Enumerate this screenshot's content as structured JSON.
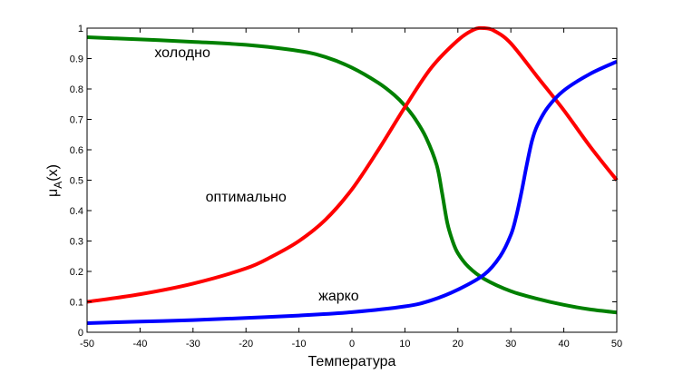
{
  "chart_data": {
    "type": "line",
    "xlabel": "Температура",
    "ylabel_main": "μ",
    "ylabel_sub": "A",
    "ylabel_rest": "(x)",
    "xlim": [
      -50,
      50
    ],
    "ylim": [
      0,
      1
    ],
    "xticks": [
      -50,
      -40,
      -30,
      -20,
      -10,
      0,
      10,
      20,
      30,
      40,
      50
    ],
    "yticks": [
      0,
      0.1,
      0.2,
      0.3,
      0.4,
      0.5,
      0.6,
      0.7,
      0.8,
      0.9,
      1
    ],
    "grid": false,
    "series": [
      {
        "name": "холодно",
        "color": "#008000",
        "x": [
          -50,
          -40,
          -30,
          -20,
          -10,
          -5,
          0,
          5,
          8,
          10,
          12,
          14,
          16,
          17,
          18,
          19,
          20,
          22,
          25,
          30,
          35,
          40,
          45,
          50
        ],
        "y": [
          0.97,
          0.963,
          0.955,
          0.945,
          0.925,
          0.905,
          0.87,
          0.82,
          0.78,
          0.745,
          0.7,
          0.64,
          0.55,
          0.46,
          0.36,
          0.3,
          0.26,
          0.215,
          0.175,
          0.135,
          0.11,
          0.09,
          0.075,
          0.065
        ]
      },
      {
        "name": "оптимально",
        "color": "#ff0000",
        "x": [
          -50,
          -40,
          -30,
          -20,
          -15,
          -10,
          -5,
          0,
          5,
          10,
          15,
          20,
          23,
          25,
          27,
          30,
          35,
          40,
          45,
          50
        ],
        "y": [
          0.1,
          0.125,
          0.16,
          0.21,
          0.25,
          0.3,
          0.37,
          0.47,
          0.6,
          0.74,
          0.87,
          0.96,
          0.995,
          1.0,
          0.99,
          0.95,
          0.84,
          0.73,
          0.61,
          0.5
        ]
      },
      {
        "name": "жарко",
        "color": "#0000ff",
        "x": [
          -50,
          -40,
          -30,
          -20,
          -10,
          0,
          10,
          15,
          20,
          25,
          28,
          30,
          31,
          32,
          33,
          34,
          35,
          37,
          40,
          45,
          50
        ],
        "y": [
          0.03,
          0.035,
          0.04,
          0.047,
          0.055,
          0.066,
          0.085,
          0.105,
          0.14,
          0.19,
          0.25,
          0.32,
          0.38,
          0.46,
          0.55,
          0.63,
          0.68,
          0.74,
          0.795,
          0.85,
          0.89
        ]
      }
    ],
    "labels": [
      {
        "text": "холодно",
        "x": -32,
        "y": 0.905
      },
      {
        "text": "оптимально",
        "x": -20,
        "y": 0.43
      },
      {
        "text": "жарко",
        "x": -2.5,
        "y": 0.105
      }
    ]
  }
}
